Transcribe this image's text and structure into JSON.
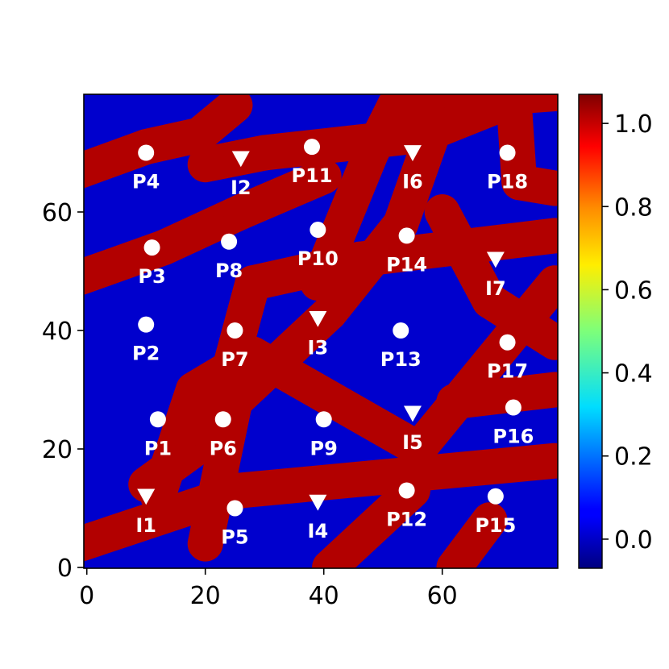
{
  "chart_data": {
    "type": "heatmap",
    "title": "",
    "xlabel": "",
    "ylabel": "",
    "xlim": [
      0,
      80
    ],
    "ylim": [
      0,
      80
    ],
    "x_ticks": [
      0,
      20,
      40,
      60
    ],
    "y_ticks": [
      0,
      20,
      40,
      60
    ],
    "values_description_colors": {
      "low": "#0000cd",
      "high": "#b20000"
    },
    "colorbar": {
      "colormap": "jet",
      "range": [
        -0.07,
        1.07
      ],
      "ticks": [
        "0.0",
        "0.2",
        "0.4",
        "0.6",
        "0.8",
        "1.0"
      ],
      "tick_values": [
        0.0,
        0.2,
        0.4,
        0.6,
        0.8,
        1.0
      ]
    },
    "channels": [
      {
        "from": [
          -1,
          4
        ],
        "to": [
          26,
          13
        ]
      },
      {
        "from": [
          26,
          13
        ],
        "to": [
          79,
          18
        ]
      },
      {
        "from": [
          41,
          0
        ],
        "to": [
          55,
          13
        ]
      },
      {
        "from": [
          62,
          0
        ],
        "to": [
          68,
          8
        ]
      },
      {
        "from": [
          10,
          14
        ],
        "to": [
          21,
          22
        ]
      },
      {
        "from": [
          21,
          22
        ],
        "to": [
          28,
          48
        ]
      },
      {
        "from": [
          28,
          48
        ],
        "to": [
          46,
          52
        ]
      },
      {
        "from": [
          46,
          52
        ],
        "to": [
          79,
          56
        ]
      },
      {
        "from": [
          39,
          48
        ],
        "to": [
          48,
          70
        ]
      },
      {
        "from": [
          48,
          70
        ],
        "to": [
          52,
          78
        ]
      },
      {
        "from": [
          52,
          78
        ],
        "to": [
          79,
          80
        ]
      },
      {
        "from": [
          20,
          4
        ],
        "to": [
          25,
          28
        ]
      },
      {
        "from": [
          25,
          28
        ],
        "to": [
          41,
          43
        ]
      },
      {
        "from": [
          41,
          43
        ],
        "to": [
          53,
          58
        ]
      },
      {
        "from": [
          53,
          58
        ],
        "to": [
          59,
          75
        ]
      },
      {
        "from": [
          -1,
          49
        ],
        "to": [
          13,
          54
        ]
      },
      {
        "from": [
          13,
          54
        ],
        "to": [
          26,
          60
        ]
      },
      {
        "from": [
          26,
          60
        ],
        "to": [
          40,
          66
        ]
      },
      {
        "from": [
          -1,
          67
        ],
        "to": [
          10,
          71
        ]
      },
      {
        "from": [
          10,
          71
        ],
        "to": [
          19,
          73
        ]
      },
      {
        "from": [
          19,
          73
        ],
        "to": [
          25,
          78
        ]
      },
      {
        "from": [
          12,
          12
        ],
        "to": [
          18,
          30
        ]
      },
      {
        "from": [
          18,
          30
        ],
        "to": [
          28,
          36
        ]
      },
      {
        "from": [
          28,
          36
        ],
        "to": [
          56,
          20
        ]
      },
      {
        "from": [
          56,
          20
        ],
        "to": [
          79,
          48
        ]
      },
      {
        "from": [
          20,
          68
        ],
        "to": [
          30,
          70
        ]
      },
      {
        "from": [
          30,
          70
        ],
        "to": [
          57,
          73
        ]
      },
      {
        "from": [
          57,
          73
        ],
        "to": [
          72,
          79
        ]
      },
      {
        "from": [
          72,
          80
        ],
        "to": [
          73,
          65
        ]
      },
      {
        "from": [
          73,
          65
        ],
        "to": [
          79,
          64
        ]
      },
      {
        "from": [
          60,
          60
        ],
        "to": [
          68,
          45
        ]
      },
      {
        "from": [
          68,
          45
        ],
        "to": [
          79,
          38
        ]
      },
      {
        "from": [
          62,
          28
        ],
        "to": [
          79,
          30
        ]
      }
    ],
    "wells": [
      {
        "label": "P1",
        "marker": "circle",
        "x": 12,
        "y": 25
      },
      {
        "label": "P2",
        "marker": "circle",
        "x": 10,
        "y": 41
      },
      {
        "label": "P3",
        "marker": "circle",
        "x": 11,
        "y": 54
      },
      {
        "label": "P4",
        "marker": "circle",
        "x": 10,
        "y": 70
      },
      {
        "label": "P5",
        "marker": "circle",
        "x": 25,
        "y": 10
      },
      {
        "label": "P6",
        "marker": "circle",
        "x": 23,
        "y": 25
      },
      {
        "label": "P7",
        "marker": "circle",
        "x": 25,
        "y": 40
      },
      {
        "label": "P8",
        "marker": "circle",
        "x": 24,
        "y": 55
      },
      {
        "label": "P9",
        "marker": "circle",
        "x": 40,
        "y": 25
      },
      {
        "label": "P10",
        "marker": "circle",
        "x": 39,
        "y": 57
      },
      {
        "label": "P11",
        "marker": "circle",
        "x": 38,
        "y": 71
      },
      {
        "label": "P12",
        "marker": "circle",
        "x": 54,
        "y": 13
      },
      {
        "label": "P13",
        "marker": "circle",
        "x": 53,
        "y": 40
      },
      {
        "label": "P14",
        "marker": "circle",
        "x": 54,
        "y": 56
      },
      {
        "label": "P15",
        "marker": "circle",
        "x": 69,
        "y": 12
      },
      {
        "label": "P16",
        "marker": "circle",
        "x": 72,
        "y": 27
      },
      {
        "label": "P17",
        "marker": "circle",
        "x": 71,
        "y": 38
      },
      {
        "label": "P18",
        "marker": "circle",
        "x": 71,
        "y": 70
      },
      {
        "label": "I1",
        "marker": "triangle-down",
        "x": 10,
        "y": 12
      },
      {
        "label": "I2",
        "marker": "triangle-down",
        "x": 26,
        "y": 69
      },
      {
        "label": "I3",
        "marker": "triangle-down",
        "x": 39,
        "y": 42
      },
      {
        "label": "I4",
        "marker": "triangle-down",
        "x": 39,
        "y": 11
      },
      {
        "label": "I5",
        "marker": "triangle-down",
        "x": 55,
        "y": 26
      },
      {
        "label": "I6",
        "marker": "triangle-down",
        "x": 55,
        "y": 70
      },
      {
        "label": "I7",
        "marker": "triangle-down",
        "x": 69,
        "y": 52
      }
    ]
  }
}
